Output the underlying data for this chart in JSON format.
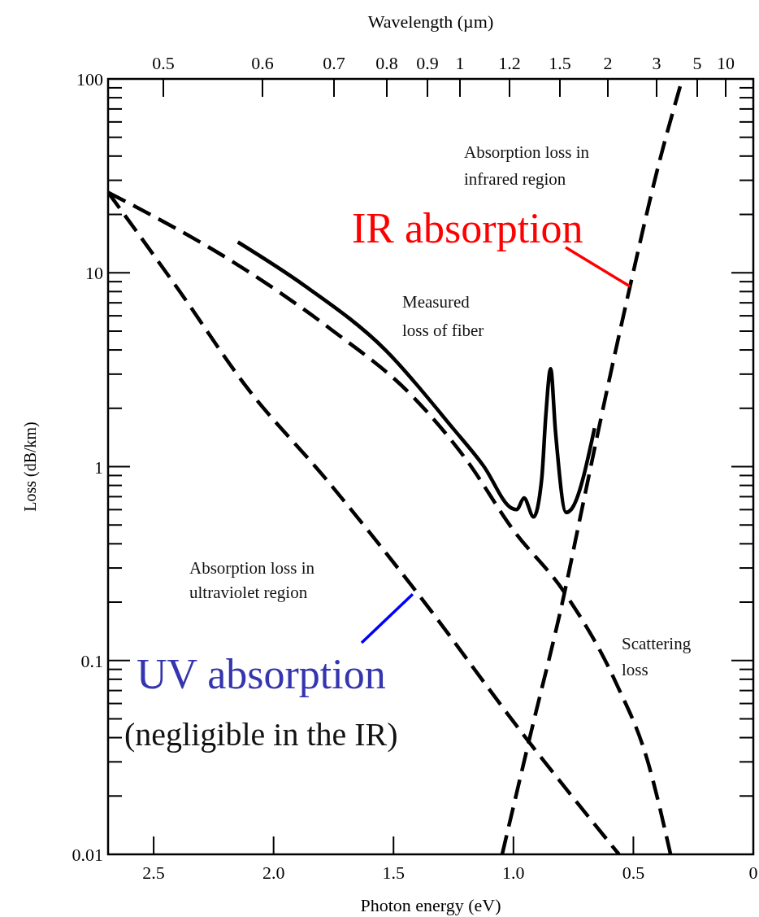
{
  "chart_data": {
    "type": "line",
    "xlabel": "Photon energy (eV)",
    "ylabel": "Loss (dB/km)",
    "log": "y",
    "line_style": "dashed",
    "xlim": [
      2.69,
      0
    ],
    "xticks": [
      2.5,
      {
        "value": 2,
        "label": "2.0"
      },
      1.5,
      {
        "value": 1,
        "label": "1.0"
      },
      0.5,
      0
    ],
    "x2label": "Wavelength (µm)",
    "ylim": [
      0.01,
      100
    ],
    "yticks": [
      0.01,
      0.1,
      1,
      10,
      100
    ],
    "series": [
      {
        "color": "#000000",
        "line_style": "solid",
        "x": [
          2.149,
          1.872,
          1.534,
          1.253,
          1.125,
          1.007,
          0.986,
          0.956,
          0.916,
          0.882,
          0.865,
          0.845,
          0.825,
          0.78,
          0.76,
          0.662
        ],
        "values": [
          14.4,
          8.6,
          4.0,
          1.58,
          1.01,
          0.61,
          0.6,
          0.69,
          0.55,
          0.87,
          1.84,
          3.2,
          1.53,
          0.58,
          0.6,
          1.58
        ]
      },
      {
        "color": "#000000",
        "x": [
          2.69,
          2.14,
          1.76,
          1.42,
          1.2,
          1.0,
          0.787,
          0.571,
          0.443,
          0.345
        ],
        "values": [
          26,
          10.8,
          5.1,
          2.3,
          1.1,
          0.47,
          0.224,
          0.076,
          0.031,
          0.01
        ]
      },
      {
        "color": "#000000",
        "x": [
          2.69,
          2.4,
          2.108,
          1.784,
          1.402,
          0.949,
          0.56
        ],
        "values": [
          26,
          8.3,
          2.53,
          0.87,
          0.224,
          0.04,
          0.01
        ]
      },
      {
        "color": "#000000",
        "x": [
          1.047,
          0.932,
          0.787,
          0.72,
          0.605,
          0.514,
          0.395,
          0.296
        ],
        "values": [
          0.01,
          0.04,
          0.224,
          0.56,
          2.65,
          8.5,
          36,
          100
        ]
      }
    ],
    "annotations": [
      "Absorption loss in\ninfrared region",
      {
        "text": "IR absorption",
        "x": 0.514,
        "y": 8.5
      },
      "Measured\nloss of fiber",
      "Absorption loss in\nultraviolet region",
      {
        "text": "UV absorption",
        "x": 1.42,
        "y": 0.22
      },
      "(negligible in the IR)",
      "Scattering\nloss",
      "0.5",
      "0.6",
      "0.7",
      "0.8",
      "0.9",
      "1",
      "1.2",
      "1.5",
      "2",
      "3",
      "5",
      "10"
    ]
  }
}
